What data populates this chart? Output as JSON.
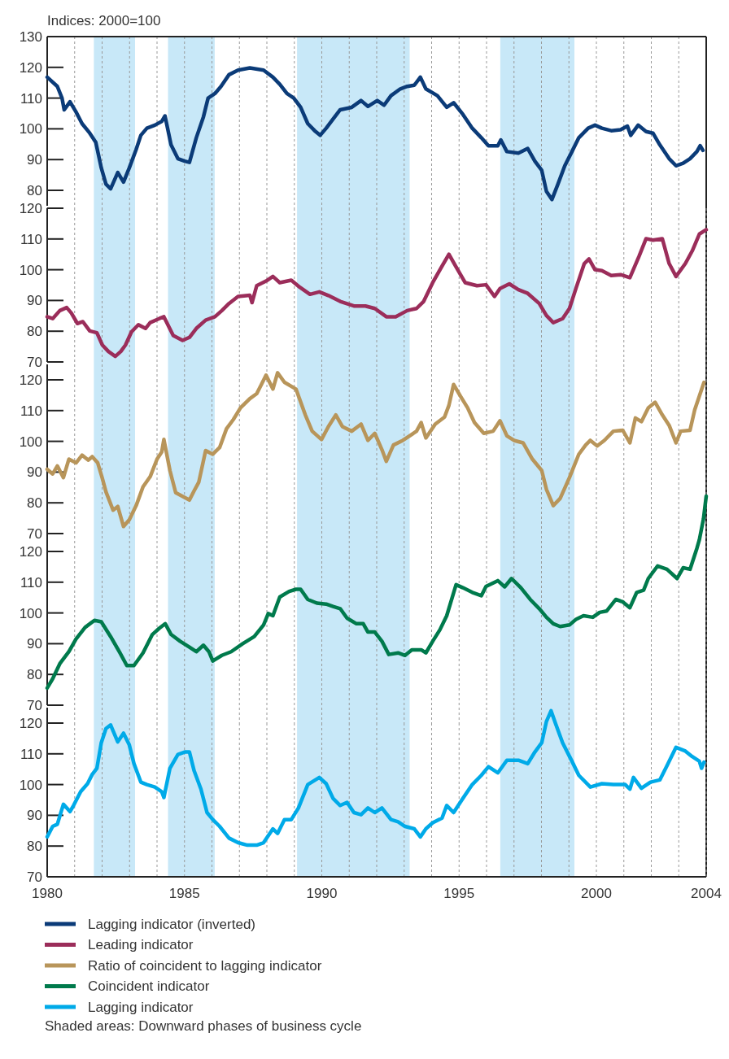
{
  "chart_data": [
    {
      "type": "line",
      "ylabel": "Indices: 2000=100",
      "xlim": [
        1980,
        2004
      ],
      "xticks": [
        1980,
        {
          "value": 1981,
          "label": null
        },
        {
          "value": 1982,
          "label": null
        },
        {
          "value": 1983,
          "label": null
        },
        {
          "value": 1984,
          "label": null
        },
        1985,
        {
          "value": 1986,
          "label": null
        },
        {
          "value": 1987,
          "label": null
        },
        {
          "value": 1988,
          "label": null
        },
        {
          "value": 1989,
          "label": null
        },
        1990,
        {
          "value": 1991,
          "label": null
        },
        {
          "value": 1992,
          "label": null
        },
        {
          "value": 1993,
          "label": null
        },
        {
          "value": 1994,
          "label": null
        },
        1995,
        {
          "value": 1996,
          "label": null
        },
        {
          "value": 1997,
          "label": null
        },
        {
          "value": 1998,
          "label": null
        },
        {
          "value": 1999,
          "label": null
        },
        2000,
        {
          "value": 2001,
          "label": null
        },
        {
          "value": 2002,
          "label": null
        },
        {
          "value": 2003,
          "label": null
        },
        2004
      ],
      "ylim": [
        75,
        130
      ],
      "yticks": [
        80,
        90,
        100,
        110,
        120,
        130
      ],
      "grid": "x",
      "legend": "bottom",
      "tick_labels": "y",
      "line_style": "solid",
      "bands": [
        {
          "axis": "x",
          "from": 1981.7,
          "to": 1983.2,
          "color": "#c8e8f8"
        },
        {
          "axis": "x",
          "from": 1984.4,
          "to": 1986.1,
          "color": "#c8e8f8"
        },
        {
          "axis": "x",
          "from": 1989.1,
          "to": 1993.2,
          "color": "#c8e8f8"
        },
        {
          "axis": "x",
          "from": 1996.5,
          "to": 1999.2,
          "color": "#c8e8f8"
        }
      ],
      "series": [
        {
          "name": "Lagging indicator (inverted)",
          "color": "#0b3b78",
          "x": [
            1980,
            1980.37,
            1980.54,
            1980.62,
            1980.83,
            1981.05,
            1981.27,
            1981.55,
            1981.77,
            1981.97,
            1982.14,
            1982.31,
            1982.57,
            1982.78,
            1982.99,
            1983.24,
            1983.41,
            1983.63,
            1983.92,
            1984.17,
            1984.29,
            1984.51,
            1984.76,
            1985.01,
            1985.18,
            1985.43,
            1985.69,
            1985.86,
            1986.11,
            1986.33,
            1986.62,
            1986.95,
            1987.38,
            1987.88,
            1988.22,
            1988.47,
            1988.73,
            1988.98,
            1989.23,
            1989.49,
            1989.74,
            1989.94,
            1990.16,
            1990.41,
            1990.67,
            1991.09,
            1991.43,
            1991.68,
            1992.02,
            1992.27,
            1992.52,
            1992.86,
            1993.11,
            1993.37,
            1993.59,
            1993.79,
            1994.21,
            1994.55,
            1994.8,
            1995.14,
            1995.48,
            1995.81,
            1996.07,
            1996.41,
            1996.52,
            1996.74,
            1997.16,
            1997.5,
            1997.76,
            1998.01,
            1998.18,
            1998.38,
            1998.6,
            1998.85,
            1999.11,
            1999.36,
            1999.7,
            1999.95,
            2000.2,
            2000.54,
            2000.88,
            2001.13,
            2001.25,
            2001.52,
            2001.81,
            2002.06,
            2002.31,
            2002.65,
            2002.9,
            2003.16,
            2003.41,
            2003.66,
            2003.78,
            2003.88
          ],
          "values": [
            116.8,
            113.8,
            110,
            106.2,
            108.8,
            105.5,
            101.7,
            98.6,
            95.6,
            87.3,
            82,
            80.5,
            85.8,
            82.7,
            87.3,
            93.3,
            97.9,
            100.2,
            101.2,
            102.4,
            104.2,
            94.8,
            90.3,
            89.5,
            89.1,
            97.1,
            103.9,
            110,
            111.5,
            113.8,
            117.6,
            119.1,
            119.8,
            119.1,
            116.8,
            114.5,
            111.5,
            110,
            107,
            101.7,
            99.4,
            97.9,
            100.2,
            103.2,
            106.2,
            107,
            109.2,
            107.3,
            109.2,
            107.7,
            110.8,
            113,
            113.8,
            114.2,
            116.8,
            113,
            110.8,
            107,
            108.5,
            104.7,
            100.2,
            97.1,
            94.5,
            94.5,
            96.4,
            92.6,
            92.1,
            93.6,
            89.5,
            86.5,
            79.7,
            77,
            82,
            88,
            92.6,
            97.1,
            100.2,
            101.2,
            100.2,
            99.4,
            99.7,
            100.9,
            97.9,
            101.2,
            99.1,
            98.6,
            94.8,
            90.3,
            88,
            88.8,
            90.3,
            92.6,
            94.5,
            93
          ]
        }
      ]
    },
    {
      "type": "line",
      "xlim": [
        1980,
        2004
      ],
      "xticks": [
        1980,
        {
          "value": 1981,
          "label": null
        },
        {
          "value": 1982,
          "label": null
        },
        {
          "value": 1983,
          "label": null
        },
        {
          "value": 1984,
          "label": null
        },
        1985,
        {
          "value": 1986,
          "label": null
        },
        {
          "value": 1987,
          "label": null
        },
        {
          "value": 1988,
          "label": null
        },
        {
          "value": 1989,
          "label": null
        },
        1990,
        {
          "value": 1991,
          "label": null
        },
        {
          "value": 1992,
          "label": null
        },
        {
          "value": 1993,
          "label": null
        },
        {
          "value": 1994,
          "label": null
        },
        1995,
        {
          "value": 1996,
          "label": null
        },
        {
          "value": 1997,
          "label": null
        },
        {
          "value": 1998,
          "label": null
        },
        {
          "value": 1999,
          "label": null
        },
        2000,
        {
          "value": 2001,
          "label": null
        },
        {
          "value": 2002,
          "label": null
        },
        {
          "value": 2003,
          "label": null
        },
        2004
      ],
      "ylim": [
        70,
        120
      ],
      "yticks": [
        70,
        80,
        90,
        100,
        110,
        120
      ],
      "grid": "x",
      "legend": "bottom",
      "tick_labels": "y",
      "line_style": "solid",
      "bands": [
        {
          "axis": "x",
          "from": 1981.7,
          "to": 1983.2,
          "color": "#c8e8f8"
        },
        {
          "axis": "x",
          "from": 1984.4,
          "to": 1986.1,
          "color": "#c8e8f8"
        },
        {
          "axis": "x",
          "from": 1989.1,
          "to": 1993.2,
          "color": "#c8e8f8"
        },
        {
          "axis": "x",
          "from": 1996.5,
          "to": 1999.2,
          "color": "#c8e8f8"
        }
      ],
      "series": [
        {
          "name": "Leading indicator",
          "color": "#9b2d5a",
          "x": [
            1980,
            1980.2,
            1980.46,
            1980.71,
            1980.88,
            1981.1,
            1981.3,
            1981.55,
            1981.81,
            1982.01,
            1982.23,
            1982.48,
            1982.68,
            1982.85,
            1983.07,
            1983.32,
            1983.58,
            1983.75,
            1984.08,
            1984.25,
            1984.59,
            1984.93,
            1985.18,
            1985.43,
            1985.77,
            1986.11,
            1986.36,
            1986.62,
            1986.95,
            1987.38,
            1987.46,
            1987.63,
            1987.97,
            1988.22,
            1988.47,
            1988.89,
            1989.2,
            1989.57,
            1989.91,
            1990.24,
            1990.67,
            1991.17,
            1991.59,
            1991.93,
            1992.35,
            1992.69,
            1993.11,
            1993.45,
            1993.71,
            1994.04,
            1994.38,
            1994.63,
            1994.89,
            1995.22,
            1995.65,
            1995.98,
            1996.29,
            1996.49,
            1996.83,
            1997.16,
            1997.5,
            1997.92,
            1998.18,
            1998.43,
            1998.77,
            1999.02,
            1999.27,
            1999.56,
            1999.73,
            1999.95,
            2000.2,
            2000.54,
            2000.88,
            2001.22,
            2001.55,
            2001.81,
            2002.06,
            2002.4,
            2002.65,
            2002.9,
            2003.24,
            2003.49,
            2003.75,
            2004
          ],
          "values": [
            84.7,
            84.1,
            86.7,
            87.7,
            85.9,
            82.5,
            83.1,
            80.1,
            79.5,
            75.5,
            73.4,
            71.8,
            73.4,
            75.5,
            79.8,
            82.1,
            80.9,
            82.8,
            84.1,
            84.7,
            78.6,
            77,
            78,
            80.9,
            83.6,
            84.7,
            86.7,
            89,
            91.3,
            91.7,
            89.3,
            94.8,
            96.3,
            97.8,
            95.8,
            96.6,
            94.3,
            92,
            92.8,
            91.6,
            89.7,
            88.2,
            88.2,
            87.4,
            84.7,
            84.7,
            86.7,
            87.4,
            89.7,
            95.8,
            101.2,
            105,
            100.9,
            95.8,
            94.8,
            95.1,
            91.3,
            93.9,
            95.4,
            93.5,
            92.3,
            89,
            85.1,
            82.8,
            84.1,
            87.4,
            94.3,
            102,
            103.5,
            100,
            99.7,
            98.1,
            98.4,
            97.4,
            104.3,
            110.1,
            109.6,
            110.1,
            102,
            97.8,
            102,
            106.1,
            111.6,
            113
          ]
        }
      ]
    },
    {
      "type": "line",
      "xlim": [
        1980,
        2004
      ],
      "xticks": [
        1980,
        {
          "value": 1981,
          "label": null
        },
        {
          "value": 1982,
          "label": null
        },
        {
          "value": 1983,
          "label": null
        },
        {
          "value": 1984,
          "label": null
        },
        1985,
        {
          "value": 1986,
          "label": null
        },
        {
          "value": 1987,
          "label": null
        },
        {
          "value": 1988,
          "label": null
        },
        {
          "value": 1989,
          "label": null
        },
        1990,
        {
          "value": 1991,
          "label": null
        },
        {
          "value": 1992,
          "label": null
        },
        {
          "value": 1993,
          "label": null
        },
        {
          "value": 1994,
          "label": null
        },
        1995,
        {
          "value": 1996,
          "label": null
        },
        {
          "value": 1997,
          "label": null
        },
        {
          "value": 1998,
          "label": null
        },
        {
          "value": 1999,
          "label": null
        },
        2000,
        {
          "value": 2001,
          "label": null
        },
        {
          "value": 2002,
          "label": null
        },
        {
          "value": 2003,
          "label": null
        },
        2004
      ],
      "ylim": [
        70,
        125
      ],
      "yticks": [
        70,
        80,
        90,
        100,
        110,
        120
      ],
      "grid": "x",
      "legend": "bottom",
      "tick_labels": "y",
      "line_style": "solid",
      "bands": [
        {
          "axis": "x",
          "from": 1981.7,
          "to": 1983.2,
          "color": "#c8e8f8"
        },
        {
          "axis": "x",
          "from": 1984.4,
          "to": 1986.1,
          "color": "#c8e8f8"
        },
        {
          "axis": "x",
          "from": 1989.1,
          "to": 1993.2,
          "color": "#c8e8f8"
        },
        {
          "axis": "x",
          "from": 1996.5,
          "to": 1999.2,
          "color": "#c8e8f8"
        }
      ],
      "series": [
        {
          "name": "Ratio of coincident to lagging indicator",
          "color": "#b8955a",
          "x": [
            1980,
            1980.2,
            1980.37,
            1980.59,
            1980.79,
            1981.05,
            1981.27,
            1981.5,
            1981.64,
            1981.84,
            1982,
            1982.14,
            1982.4,
            1982.57,
            1982.78,
            1982.99,
            1983.24,
            1983.49,
            1983.75,
            1984,
            1984.17,
            1984.25,
            1984.47,
            1984.68,
            1984.93,
            1985.18,
            1985.35,
            1985.52,
            1985.77,
            1986.03,
            1986.28,
            1986.53,
            1986.78,
            1987.04,
            1987.38,
            1987.63,
            1987.8,
            1987.97,
            1988.22,
            1988.39,
            1988.64,
            1989.06,
            1989.4,
            1989.65,
            1989.99,
            1990.24,
            1990.51,
            1990.75,
            1991.09,
            1991.43,
            1991.68,
            1991.93,
            1992.19,
            1992.35,
            1992.61,
            1992.95,
            1993.2,
            1993.45,
            1993.62,
            1993.79,
            1994.13,
            1994.47,
            1994.63,
            1994.8,
            1995.05,
            1995.31,
            1995.56,
            1995.9,
            1996.24,
            1996.49,
            1996.74,
            1997,
            1997.33,
            1997.67,
            1998.01,
            1998.18,
            1998.43,
            1998.68,
            1999.02,
            1999.36,
            1999.61,
            1999.78,
            2000.03,
            2000.29,
            2000.62,
            2000.96,
            2001.22,
            2001.42,
            2001.64,
            2001.89,
            2002.14,
            2002.4,
            2002.65,
            2002.9,
            2003.07,
            2003.41,
            2003.58,
            2003.75,
            2003.92
          ],
          "values": [
            90.9,
            89.4,
            92,
            88.2,
            94.2,
            93,
            95.5,
            93.9,
            95,
            93,
            88.2,
            83.6,
            77.6,
            78.8,
            72.3,
            74.5,
            79.1,
            85.2,
            88.5,
            94.2,
            96.5,
            100.6,
            90.5,
            83.3,
            82.1,
            80.9,
            83.9,
            86.7,
            97,
            95.8,
            98,
            104.1,
            107.1,
            110.9,
            113.9,
            115.5,
            118.5,
            121.5,
            117,
            122.3,
            119.2,
            117,
            108.6,
            103.3,
            100.6,
            104.8,
            108.6,
            104.8,
            103.3,
            105.6,
            100.3,
            102.6,
            97.3,
            93.5,
            98.8,
            100.3,
            101.8,
            103.3,
            106.1,
            101.1,
            105.6,
            107.9,
            111.7,
            118.5,
            114.7,
            110.9,
            106.1,
            102.6,
            103.3,
            106.7,
            101.8,
            100.3,
            99.5,
            94.2,
            90.5,
            84.4,
            79.1,
            81.4,
            88.2,
            95.8,
            98.8,
            100.3,
            98.5,
            100.3,
            103.3,
            103.6,
            99.5,
            107.6,
            106.4,
            110.9,
            112.7,
            108.6,
            105.2,
            99.5,
            103.3,
            103.6,
            110.2,
            114.7,
            119.2
          ]
        }
      ]
    },
    {
      "type": "line",
      "xlim": [
        1980,
        2004
      ],
      "xticks": [
        1980,
        {
          "value": 1981,
          "label": null
        },
        {
          "value": 1982,
          "label": null
        },
        {
          "value": 1983,
          "label": null
        },
        {
          "value": 1984,
          "label": null
        },
        1985,
        {
          "value": 1986,
          "label": null
        },
        {
          "value": 1987,
          "label": null
        },
        {
          "value": 1988,
          "label": null
        },
        {
          "value": 1989,
          "label": null
        },
        1990,
        {
          "value": 1991,
          "label": null
        },
        {
          "value": 1992,
          "label": null
        },
        {
          "value": 1993,
          "label": null
        },
        {
          "value": 1994,
          "label": null
        },
        1995,
        {
          "value": 1996,
          "label": null
        },
        {
          "value": 1997,
          "label": null
        },
        {
          "value": 1998,
          "label": null
        },
        {
          "value": 1999,
          "label": null
        },
        2000,
        {
          "value": 2001,
          "label": null
        },
        {
          "value": 2002,
          "label": null
        },
        {
          "value": 2003,
          "label": null
        },
        2004
      ],
      "ylim": [
        70,
        140
      ],
      "yticks": [
        70,
        80,
        90,
        100,
        110,
        120
      ],
      "grid": "x",
      "legend": "bottom",
      "tick_labels": "y",
      "line_style": "solid",
      "bands": [
        {
          "axis": "x",
          "from": 1981.7,
          "to": 1983.2,
          "color": "#c8e8f8"
        },
        {
          "axis": "x",
          "from": 1984.4,
          "to": 1986.1,
          "color": "#c8e8f8"
        },
        {
          "axis": "x",
          "from": 1989.1,
          "to": 1993.2,
          "color": "#c8e8f8"
        },
        {
          "axis": "x",
          "from": 1996.5,
          "to": 1999.2,
          "color": "#c8e8f8"
        }
      ],
      "series": [
        {
          "name": "Coincident indicator",
          "color": "#007a4c",
          "x": [
            1980,
            1980.2,
            1980.46,
            1980.79,
            1981.05,
            1981.38,
            1981.72,
            1981.97,
            1982.31,
            1982.65,
            1982.9,
            1983.16,
            1983.49,
            1983.83,
            1984.08,
            1984.3,
            1984.51,
            1984.84,
            1985.18,
            1985.43,
            1985.69,
            1985.89,
            1986.03,
            1986.36,
            1986.7,
            1987.12,
            1987.54,
            1987.88,
            1988.05,
            1988.22,
            1988.47,
            1988.81,
            1989.06,
            1989.23,
            1989.49,
            1989.82,
            1990.16,
            1990.41,
            1990.67,
            1990.92,
            1991.26,
            1991.51,
            1991.68,
            1991.93,
            1992.19,
            1992.44,
            1992.78,
            1993.03,
            1993.28,
            1993.62,
            1993.79,
            1994.04,
            1994.3,
            1994.55,
            1994.89,
            1995.14,
            1995.48,
            1995.81,
            1995.98,
            1996.41,
            1996.66,
            1996.91,
            1997.25,
            1997.59,
            1997.92,
            1998.18,
            1998.43,
            1998.68,
            1999.02,
            1999.27,
            1999.53,
            1999.87,
            2000.12,
            2000.37,
            2000.71,
            2000.96,
            2001.22,
            2001.47,
            2001.72,
            2001.89,
            2002.23,
            2002.57,
            2002.94,
            2003.16,
            2003.41,
            2003.66,
            2003.75,
            2003.9,
            2004
          ],
          "values": [
            75.6,
            78.6,
            83.5,
            87.4,
            91.5,
            95.3,
            97.6,
            97.1,
            92.3,
            87,
            82.9,
            82.9,
            87,
            93,
            95,
            96.5,
            93,
            90.8,
            88.9,
            87.4,
            89.5,
            87.4,
            84.4,
            86.2,
            87.4,
            90,
            92.3,
            96.1,
            99.8,
            99.1,
            105.2,
            107,
            107.7,
            107.7,
            104.4,
            103.2,
            102.9,
            102.1,
            101.4,
            98.3,
            96.5,
            96.5,
            93.8,
            93.8,
            90.8,
            86.5,
            87,
            86.2,
            88,
            88,
            87,
            90.8,
            94.5,
            99.1,
            109.2,
            108.2,
            106.7,
            105.6,
            108.6,
            110.5,
            108.5,
            111.2,
            108.2,
            104.4,
            101.4,
            98.6,
            96.5,
            95.6,
            96.1,
            98,
            99.1,
            98.6,
            100.2,
            100.6,
            104.4,
            103.6,
            101.7,
            106.7,
            107.4,
            111.2,
            115.3,
            114.2,
            111.2,
            114.7,
            114.2,
            121,
            123.8,
            130.6,
            138
          ]
        }
      ]
    },
    {
      "type": "line",
      "xlim": [
        1980,
        2004
      ],
      "xticks": [
        1980,
        {
          "value": 1981,
          "label": null
        },
        {
          "value": 1982,
          "label": null
        },
        {
          "value": 1983,
          "label": null
        },
        {
          "value": 1984,
          "label": null
        },
        1985,
        {
          "value": 1986,
          "label": null
        },
        {
          "value": 1987,
          "label": null
        },
        {
          "value": 1988,
          "label": null
        },
        {
          "value": 1989,
          "label": null
        },
        1990,
        {
          "value": 1991,
          "label": null
        },
        {
          "value": 1992,
          "label": null
        },
        {
          "value": 1993,
          "label": null
        },
        {
          "value": 1994,
          "label": null
        },
        1995,
        {
          "value": 1996,
          "label": null
        },
        {
          "value": 1997,
          "label": null
        },
        {
          "value": 1998,
          "label": null
        },
        {
          "value": 1999,
          "label": null
        },
        2000,
        {
          "value": 2001,
          "label": null
        },
        {
          "value": 2002,
          "label": null
        },
        {
          "value": 2003,
          "label": null
        },
        2004
      ],
      "ylim": [
        70,
        125
      ],
      "yticks": [
        70,
        80,
        90,
        100,
        110,
        120
      ],
      "grid": "x",
      "legend": "bottom",
      "line_style": "solid",
      "annotations": [
        "Shaded areas: Downward phases of business cycle"
      ],
      "bands": [
        {
          "axis": "x",
          "from": 1981.7,
          "to": 1983.2,
          "color": "#c8e8f8"
        },
        {
          "axis": "x",
          "from": 1984.4,
          "to": 1986.1,
          "color": "#c8e8f8"
        },
        {
          "axis": "x",
          "from": 1989.1,
          "to": 1993.2,
          "color": "#c8e8f8"
        },
        {
          "axis": "x",
          "from": 1996.5,
          "to": 1999.2,
          "color": "#c8e8f8"
        }
      ],
      "series": [
        {
          "name": "Lagging indicator",
          "color": "#00aae8",
          "x": [
            1980,
            1980.2,
            1980.37,
            1980.59,
            1980.83,
            1980.96,
            1981.22,
            1981.47,
            1981.64,
            1981.81,
            1981.97,
            1982.14,
            1982.31,
            1982.57,
            1982.78,
            1982.99,
            1983.16,
            1983.41,
            1983.63,
            1983.92,
            1984.17,
            1984.25,
            1984.47,
            1984.76,
            1985.01,
            1985.18,
            1985.35,
            1985.6,
            1985.82,
            1986.03,
            1986.28,
            1986.62,
            1986.95,
            1987.29,
            1987.63,
            1987.88,
            1988.22,
            1988.39,
            1988.64,
            1988.89,
            1989.15,
            1989.49,
            1989.91,
            1990.16,
            1990.41,
            1990.67,
            1990.92,
            1991.17,
            1991.43,
            1991.68,
            1991.93,
            1992.19,
            1992.52,
            1992.78,
            1993.03,
            1993.37,
            1993.59,
            1993.79,
            1994.04,
            1994.38,
            1994.55,
            1994.8,
            1995.14,
            1995.48,
            1995.81,
            1996.07,
            1996.41,
            1996.74,
            1997.16,
            1997.5,
            1997.76,
            1998.01,
            1998.18,
            1998.35,
            1998.52,
            1998.77,
            1999.11,
            1999.36,
            1999.78,
            2000.2,
            2000.62,
            2001.05,
            2001.22,
            2001.35,
            2001.64,
            2001.97,
            2002.31,
            2002.57,
            2002.9,
            2003.24,
            2003.49,
            2003.75,
            2003.83,
            2003.92
          ],
          "values": [
            83,
            86.4,
            87.1,
            93.6,
            91.2,
            93.2,
            97.7,
            100.3,
            103.3,
            105.3,
            113.6,
            118.2,
            119.4,
            113.9,
            116.7,
            112.9,
            106.8,
            100.8,
            100,
            99.2,
            97.7,
            95.8,
            105.3,
            109.8,
            110.6,
            110.6,
            104.5,
            98.5,
            90.9,
            88.6,
            86.4,
            82.6,
            81.1,
            80.3,
            80.3,
            81.1,
            85.6,
            84.1,
            88.6,
            88.6,
            92.4,
            100,
            102.3,
            100.3,
            95.5,
            93.2,
            94.2,
            90.9,
            90.2,
            92.4,
            90.9,
            92.4,
            88.6,
            87.9,
            86.4,
            85.6,
            83,
            85.6,
            87.6,
            89.1,
            93.2,
            90.9,
            95.5,
            100,
            103,
            105.8,
            103.8,
            107.9,
            107.9,
            106.8,
            110.6,
            113.6,
            120.5,
            124,
            119.7,
            113.6,
            107.6,
            103,
            99.2,
            100.3,
            100,
            100,
            98.5,
            102.3,
            98.8,
            100.8,
            101.5,
            106.1,
            112.1,
            110.9,
            109.1,
            107.6,
            105.3,
            107.3
          ]
        }
      ]
    }
  ]
}
